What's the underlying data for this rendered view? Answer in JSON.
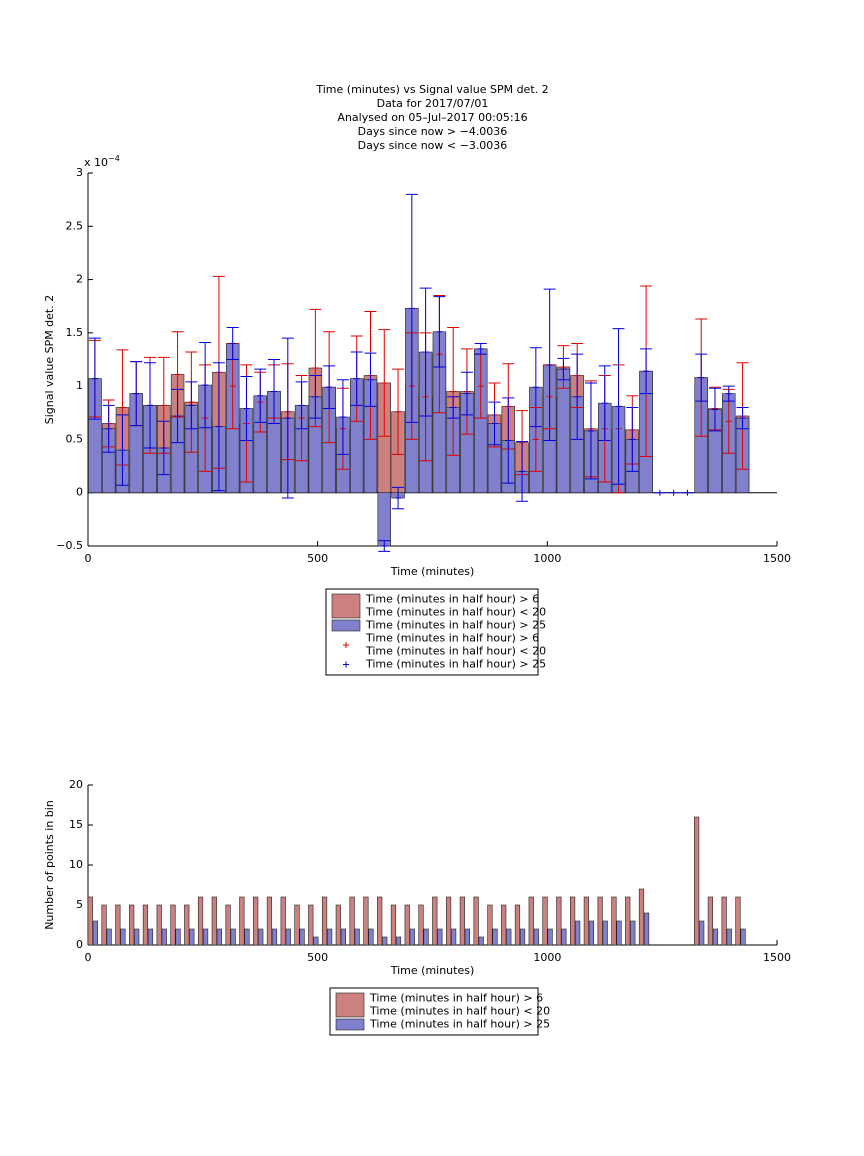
{
  "chart_data": [
    {
      "type": "bar",
      "title": [
        "Time (minutes) vs Signal value SPM det. 2",
        "Data for 2017/07/01",
        "Analysed on 05–Jul–2017 00:05:16",
        "Days since now > −4.0036",
        "Days since now < −3.0036"
      ],
      "x_label": "Time (minutes)",
      "y_label": "Signal value SPM det. 2",
      "y_multiplier": {
        "base": "x 10",
        "exponent": "−4"
      },
      "x": [
        15,
        45,
        75,
        105,
        135,
        165,
        195,
        225,
        255,
        285,
        315,
        345,
        375,
        405,
        435,
        465,
        495,
        525,
        555,
        585,
        615,
        645,
        675,
        705,
        735,
        765,
        795,
        825,
        855,
        885,
        915,
        945,
        975,
        1005,
        1035,
        1065,
        1095,
        1125,
        1155,
        1185,
        1215,
        1245,
        1275,
        1305,
        1335,
        1365,
        1395,
        1425
      ],
      "series": [
        {
          "name": [
            "Time (minutes in half hour) > 6",
            "Time (minutes in half hour) < 20"
          ],
          "color": "#cc8080",
          "error_color": "#e00000",
          "error_name": [
            "Time (minutes in half hour) > 6",
            "Time (minutes in half hour) < 20"
          ],
          "values": [
            1.07,
            0.65,
            0.8,
            0.93,
            0.82,
            0.82,
            1.11,
            0.85,
            0.7,
            1.13,
            1.0,
            0.65,
            0.85,
            0.95,
            0.76,
            0.7,
            1.17,
            0.99,
            0.6,
            1.07,
            1.1,
            1.03,
            0.76,
            1.0,
            0.9,
            1.3,
            0.95,
            0.95,
            1.0,
            0.73,
            0.81,
            0.47,
            0.5,
            0.9,
            1.18,
            1.1,
            0.6,
            0.6,
            0.6,
            0.59,
            1.14,
            null,
            null,
            null,
            1.08,
            0.79,
            0.67,
            0.72
          ],
          "errors": [
            0.36,
            0.22,
            0.54,
            0.3,
            0.45,
            0.45,
            0.4,
            0.47,
            0.5,
            0.9,
            0.4,
            0.55,
            0.28,
            0.25,
            0.45,
            0.4,
            0.55,
            0.52,
            0.38,
            0.4,
            0.6,
            0.5,
            0.4,
            0.5,
            0.6,
            0.55,
            0.6,
            0.4,
            0.3,
            0.3,
            0.4,
            0.3,
            0.3,
            0.3,
            0.2,
            0.3,
            0.45,
            0.5,
            0.6,
            0.32,
            0.8,
            null,
            null,
            null,
            0.55,
            0.2,
            0.3,
            0.5
          ]
        },
        {
          "name": [
            "Time (minutes in half hour) > 25"
          ],
          "color": "#8080cc",
          "error_color": "#0000e0",
          "error_name": [
            "Time (minutes in half hour) > 25"
          ],
          "values": [
            1.07,
            0.6,
            0.4,
            0.93,
            0.82,
            0.42,
            0.72,
            0.82,
            1.01,
            0.62,
            1.4,
            0.79,
            0.91,
            0.95,
            0.7,
            0.82,
            0.9,
            0.99,
            0.71,
            1.07,
            1.06,
            -0.5,
            -0.05,
            1.73,
            1.32,
            1.51,
            0.8,
            0.93,
            1.35,
            0.65,
            0.49,
            0.2,
            0.99,
            1.2,
            1.16,
            0.9,
            0.58,
            0.84,
            0.81,
            0.5,
            1.14,
            0,
            0,
            0,
            1.08,
            0.78,
            0.93,
            0.7
          ],
          "errors": [
            0.38,
            0.22,
            0.33,
            0.3,
            0.4,
            0.25,
            0.25,
            0.22,
            0.4,
            0.6,
            0.15,
            0.3,
            0.25,
            0.3,
            0.75,
            0.22,
            0.2,
            0.2,
            0.35,
            0.25,
            0.25,
            0.05,
            0.1,
            1.07,
            0.6,
            0.33,
            0.1,
            0.2,
            0.05,
            0.2,
            0.4,
            0.28,
            0.37,
            0.71,
            0.1,
            0.4,
            0.45,
            0.35,
            0.73,
            0.3,
            0.21,
            0,
            0,
            0,
            0.22,
            0.2,
            0.07,
            0.1
          ]
        }
      ],
      "xlim": [
        0,
        1500
      ],
      "xticks": [
        0,
        500,
        1000,
        1500
      ],
      "ylim": [
        -0.5,
        3
      ],
      "yticks": [
        {
          "value": -0.5,
          "label": "−0.5"
        },
        0,
        0.5,
        1,
        1.5,
        2,
        2.5,
        3
      ]
    },
    {
      "type": "bar",
      "x_label": "Time (minutes)",
      "y_label": "Number of points in bin",
      "x": [
        15,
        45,
        75,
        105,
        135,
        165,
        195,
        225,
        255,
        285,
        315,
        345,
        375,
        405,
        435,
        465,
        495,
        525,
        555,
        585,
        615,
        645,
        675,
        705,
        735,
        765,
        795,
        825,
        855,
        885,
        915,
        945,
        975,
        1005,
        1035,
        1065,
        1095,
        1125,
        1155,
        1185,
        1215,
        1245,
        1275,
        1305,
        1335,
        1365,
        1395,
        1425
      ],
      "series": [
        {
          "name": [
            "Time (minutes in half hour) > 6",
            "Time (minutes in half hour) < 20"
          ],
          "color": "#cc8080",
          "values": [
            6,
            5,
            5,
            5,
            5,
            5,
            5,
            5,
            6,
            6,
            5,
            6,
            6,
            6,
            6,
            5,
            5,
            6,
            5,
            6,
            6,
            6,
            5,
            5,
            5,
            6,
            6,
            6,
            6,
            5,
            5,
            5,
            6,
            6,
            6,
            6,
            6,
            6,
            6,
            6,
            7,
            null,
            null,
            null,
            16,
            6,
            6,
            6
          ]
        },
        {
          "name": [
            "Time (minutes in half hour) > 25"
          ],
          "color": "#8080cc",
          "values": [
            3,
            2,
            2,
            2,
            2,
            2,
            2,
            2,
            2,
            2,
            2,
            2,
            2,
            2,
            2,
            2,
            1,
            2,
            2,
            2,
            2,
            1,
            1,
            2,
            2,
            2,
            2,
            2,
            1,
            2,
            2,
            2,
            2,
            2,
            2,
            3,
            3,
            3,
            3,
            3,
            4,
            null,
            null,
            null,
            3,
            2,
            2,
            2
          ]
        }
      ],
      "xlim": [
        0,
        1500
      ],
      "xticks": [
        0,
        500,
        1000,
        1500
      ],
      "ylim": [
        0,
        20
      ],
      "yticks": [
        0,
        5,
        10,
        15,
        20
      ]
    }
  ]
}
